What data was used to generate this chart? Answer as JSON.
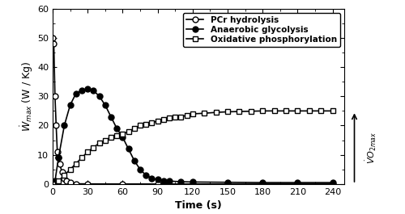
{
  "title": "",
  "xlabel": "Time (s)",
  "ylabel": "$\\dot{W}_{max}$ (W / Kg)",
  "right_label": "$\\dot{V}O_{2max}$",
  "xlim": [
    0,
    250
  ],
  "ylim": [
    0,
    60
  ],
  "xticks": [
    0,
    30,
    60,
    90,
    120,
    150,
    180,
    210,
    240
  ],
  "yticks": [
    0,
    10,
    20,
    30,
    40,
    50,
    60
  ],
  "pcr": {
    "t": [
      0,
      1,
      2,
      3,
      4,
      5,
      6,
      8,
      10,
      12,
      15,
      20,
      30,
      60,
      90,
      120,
      150,
      180,
      210,
      240
    ],
    "w": [
      50,
      48,
      30,
      20,
      11,
      9,
      7,
      4,
      2,
      1,
      0.5,
      0.1,
      0.05,
      0.02,
      0.01,
      0.01,
      0.01,
      0.01,
      0.01,
      0.01
    ]
  },
  "anaerobic": {
    "t": [
      0,
      2,
      5,
      10,
      15,
      20,
      25,
      30,
      35,
      40,
      45,
      50,
      55,
      60,
      65,
      70,
      75,
      80,
      85,
      90,
      95,
      100,
      110,
      120,
      150,
      180,
      210,
      240
    ],
    "w": [
      0,
      1,
      9,
      20,
      27,
      31,
      32,
      32.5,
      32,
      30,
      27,
      23,
      19,
      16,
      12,
      8,
      5,
      3,
      2,
      1.5,
      1.2,
      1.0,
      0.8,
      0.7,
      0.6,
      0.5,
      0.5,
      0.5
    ]
  },
  "oxidative": {
    "t": [
      0,
      5,
      10,
      15,
      20,
      25,
      30,
      35,
      40,
      45,
      50,
      55,
      60,
      65,
      70,
      75,
      80,
      85,
      90,
      95,
      100,
      105,
      110,
      115,
      120,
      130,
      140,
      150,
      160,
      170,
      180,
      190,
      200,
      210,
      220,
      230,
      240
    ],
    "w": [
      0,
      1,
      3,
      5,
      7,
      9,
      11,
      12.5,
      14,
      15,
      16,
      16.5,
      17,
      18,
      19,
      20,
      20.5,
      21,
      21.5,
      22,
      22.5,
      23,
      23,
      23.5,
      24,
      24.2,
      24.5,
      24.7,
      24.8,
      24.9,
      25,
      25,
      25,
      25,
      25,
      25,
      25
    ]
  },
  "vo2max_level": 25,
  "legend_loc": "upper right",
  "pcr_color": "black",
  "anaerobic_color": "black",
  "oxidative_color": "black",
  "background": "white"
}
